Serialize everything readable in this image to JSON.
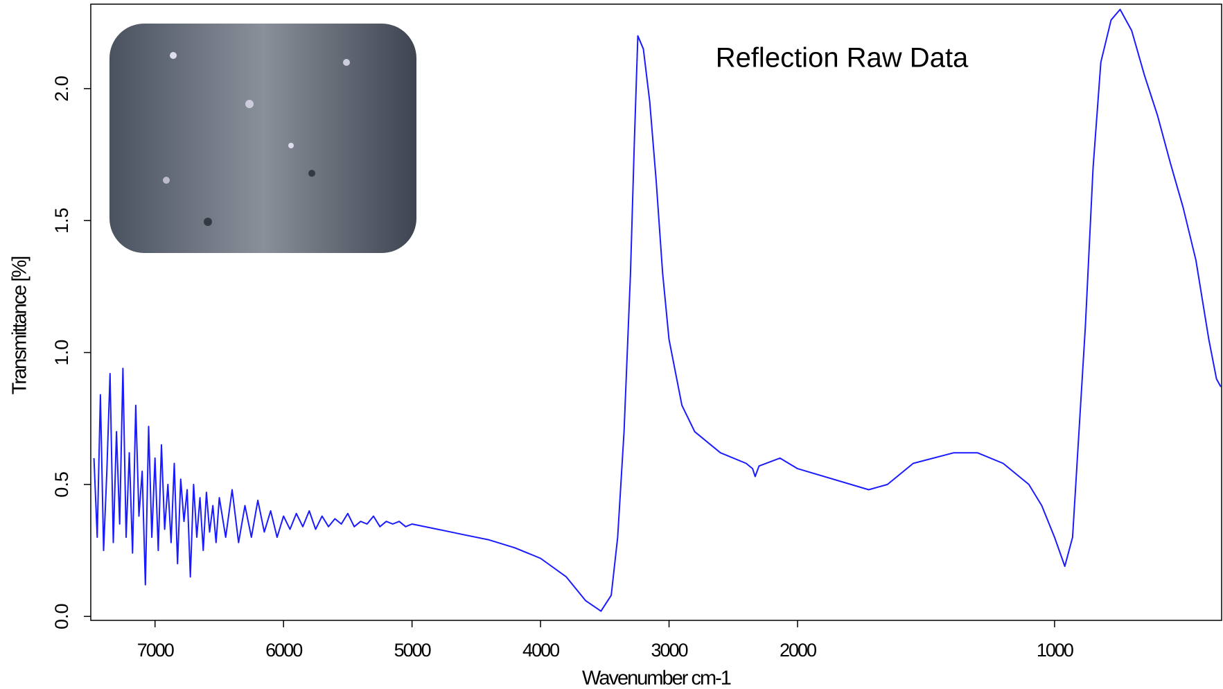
{
  "chart_data": {
    "type": "line",
    "annotation": "Reflection Raw Data",
    "xlabel": "Wavenumber cm-1",
    "ylabel": "Transmittance [%]",
    "xlim": [
      7500,
      350
    ],
    "x_scale_break": {
      "at": 2000,
      "factor": 2
    },
    "ylim": [
      -0.015,
      2.32
    ],
    "xticks": [
      7000,
      6000,
      5000,
      4000,
      3000,
      2000,
      1000
    ],
    "yticks": [
      {
        "value": 0,
        "label": "0.0"
      },
      0.5,
      {
        "value": 1,
        "label": "1.0"
      },
      1.5,
      {
        "value": 2,
        "label": "2.0"
      }
    ],
    "series": [
      {
        "name": "Reflection Raw Data",
        "color": "#1a1aff",
        "x": [
          7475,
          7450,
          7425,
          7400,
          7375,
          7350,
          7325,
          7300,
          7275,
          7250,
          7225,
          7200,
          7175,
          7150,
          7125,
          7100,
          7075,
          7050,
          7025,
          7000,
          6975,
          6950,
          6925,
          6900,
          6875,
          6850,
          6825,
          6800,
          6775,
          6750,
          6725,
          6700,
          6675,
          6650,
          6625,
          6600,
          6575,
          6550,
          6525,
          6500,
          6450,
          6400,
          6350,
          6300,
          6250,
          6200,
          6150,
          6100,
          6050,
          6000,
          5950,
          5900,
          5850,
          5800,
          5750,
          5700,
          5650,
          5600,
          5550,
          5500,
          5450,
          5400,
          5350,
          5300,
          5250,
          5200,
          5150,
          5100,
          5050,
          5000,
          4800,
          4600,
          4400,
          4200,
          4000,
          3800,
          3650,
          3530,
          3450,
          3400,
          3350,
          3300,
          3270,
          3243,
          3200,
          3150,
          3100,
          3050,
          3000,
          2900,
          2800,
          2600,
          2400,
          2350,
          2330,
          2300,
          2137,
          2000,
          1723,
          1650,
          1550,
          1392,
          1300,
          1200,
          1100,
          1050,
          1000,
          960,
          930,
          880,
          850,
          820,
          780,
          745,
          700,
          650,
          600,
          550,
          500,
          450,
          400,
          370,
          353
        ],
        "values": [
          0.6,
          0.3,
          0.84,
          0.25,
          0.55,
          0.92,
          0.28,
          0.7,
          0.35,
          0.94,
          0.3,
          0.62,
          0.24,
          0.8,
          0.38,
          0.55,
          0.12,
          0.72,
          0.3,
          0.6,
          0.25,
          0.65,
          0.33,
          0.5,
          0.28,
          0.58,
          0.2,
          0.52,
          0.36,
          0.48,
          0.15,
          0.5,
          0.3,
          0.45,
          0.25,
          0.47,
          0.32,
          0.42,
          0.28,
          0.45,
          0.3,
          0.48,
          0.28,
          0.42,
          0.3,
          0.44,
          0.32,
          0.4,
          0.3,
          0.38,
          0.33,
          0.39,
          0.34,
          0.4,
          0.33,
          0.38,
          0.34,
          0.37,
          0.35,
          0.39,
          0.34,
          0.36,
          0.35,
          0.38,
          0.34,
          0.36,
          0.35,
          0.36,
          0.34,
          0.35,
          0.33,
          0.31,
          0.29,
          0.26,
          0.22,
          0.15,
          0.06,
          0.02,
          0.08,
          0.3,
          0.7,
          1.3,
          1.8,
          2.2,
          2.15,
          1.95,
          1.65,
          1.3,
          1.05,
          0.8,
          0.7,
          0.62,
          0.58,
          0.56,
          0.53,
          0.57,
          0.6,
          0.56,
          0.48,
          0.5,
          0.58,
          0.62,
          0.62,
          0.58,
          0.5,
          0.42,
          0.3,
          0.19,
          0.3,
          1.1,
          1.7,
          2.1,
          2.26,
          2.3,
          2.22,
          2.05,
          1.9,
          1.72,
          1.55,
          1.35,
          1.05,
          0.9,
          0.87
        ]
      }
    ]
  }
}
